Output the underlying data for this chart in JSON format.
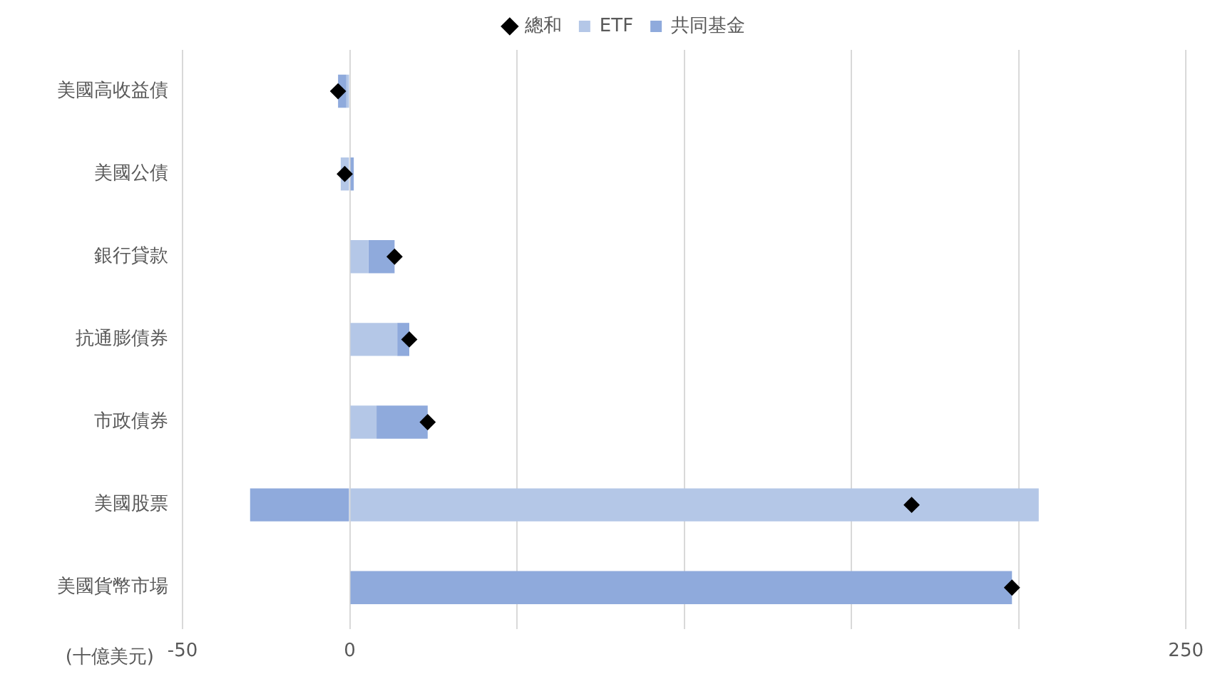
{
  "chart_data": {
    "type": "bar",
    "orientation": "horizontal",
    "stacked": true,
    "xlabel": "(十億美元)",
    "categories": [
      "美國高收益債",
      "美國公債",
      "銀行貸款",
      "抗通膨債券",
      "市政債券",
      "美國股票",
      "美國貨幣市場"
    ],
    "series": [
      {
        "name": "ETF",
        "color": "#b4c7e7",
        "values": [
          -1,
          -2.7,
          5.6,
          14.2,
          8,
          206,
          0
        ]
      },
      {
        "name": "共同基金",
        "color": "#8faadc",
        "values": [
          -2.5,
          1.2,
          7.8,
          3.6,
          15.3,
          -29.8,
          198
        ]
      },
      {
        "name": "總和",
        "type": "scatter",
        "marker": "diamond",
        "color": "#000000",
        "values": [
          -3.5,
          -1.5,
          13.4,
          17.8,
          23.3,
          168,
          198
        ]
      }
    ],
    "xlim": [
      -50,
      250
    ],
    "xticks": [
      -50,
      0,
      {
        "value": 50,
        "label": null
      },
      {
        "value": 100,
        "label": null
      },
      {
        "value": 150,
        "label": null
      },
      {
        "value": 200,
        "label": null
      },
      250
    ],
    "grid": "x",
    "legend": "top"
  }
}
